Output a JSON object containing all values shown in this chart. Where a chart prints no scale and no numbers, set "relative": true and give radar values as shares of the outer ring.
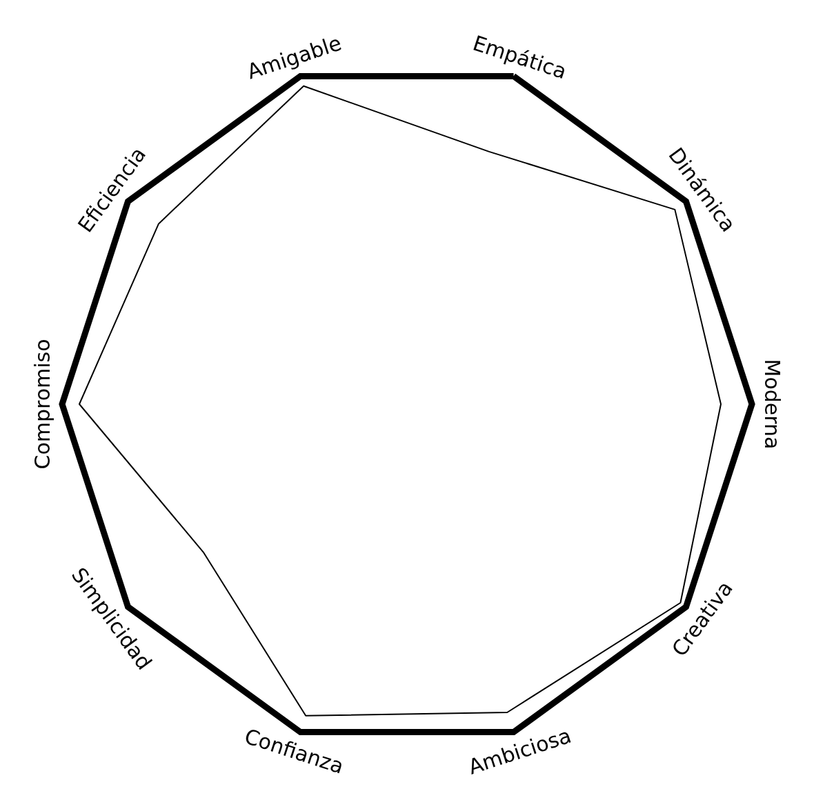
{
  "chart_data": {
    "type": "radar",
    "relative": true,
    "marker": "none",
    "categories": [
      "Empática",
      "Dinámica",
      "Moderna",
      "Creativa",
      "Ambiciosa",
      "Confianza",
      "Simplicidad",
      "Compromiso",
      "Eficiencia",
      "Amigable"
    ],
    "series": [
      {
        "color": "#000000",
        "values": [
          0.77,
          0.96,
          0.91,
          0.98,
          0.94,
          0.95,
          0.73,
          0.95,
          0.89,
          0.97
        ]
      }
    ]
  }
}
